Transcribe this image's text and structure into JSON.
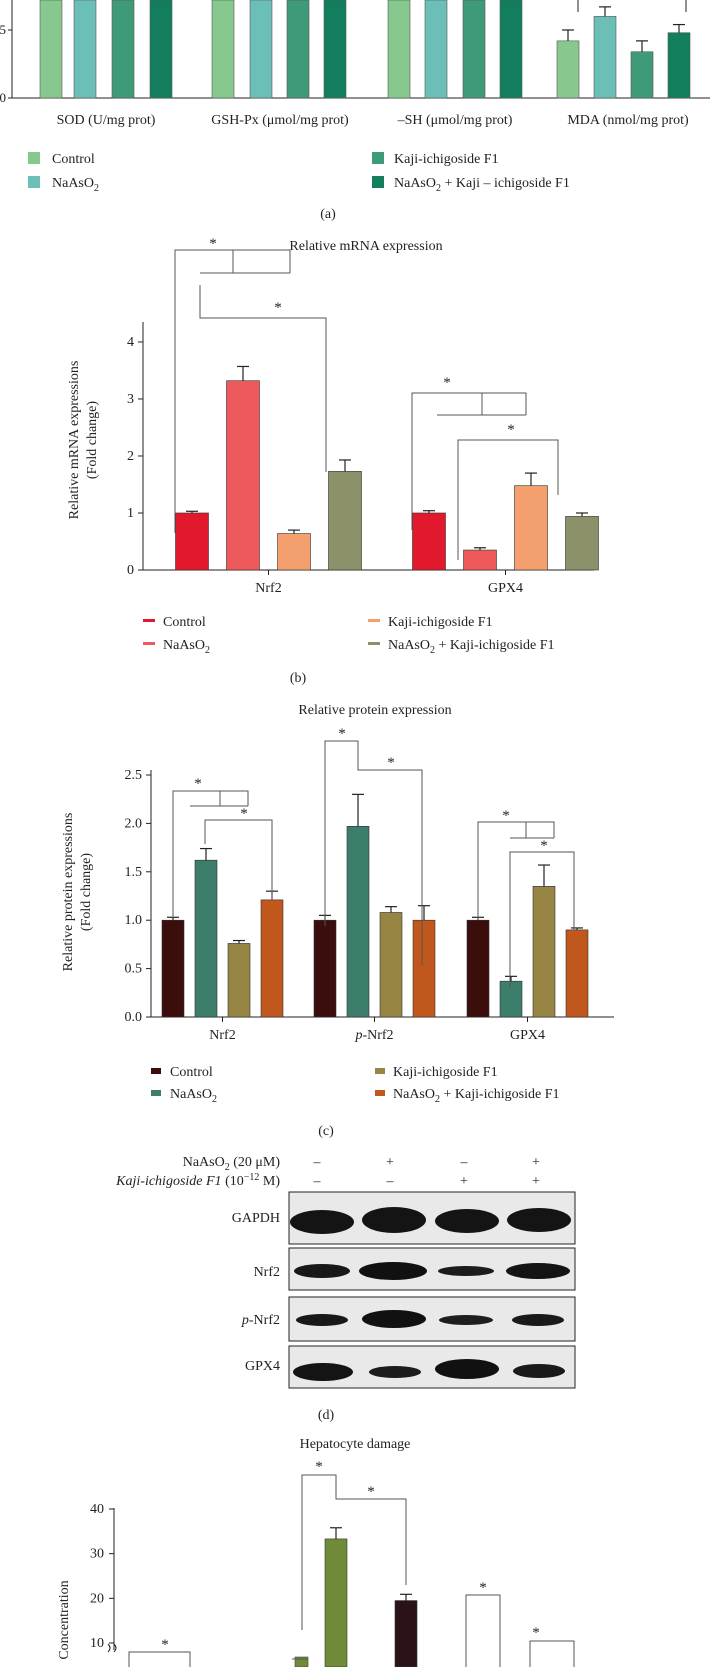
{
  "colors": {
    "green1": "#86c88d",
    "teal1": "#6cbfb6",
    "green2": "#3f9a78",
    "green3": "#137e5e",
    "red1": "#e2182c",
    "salmon": "#ee5a5b",
    "peach": "#f3a06e",
    "olive": "#8c916a",
    "maroon": "#3b0d0b",
    "seagreen": "#3c7d6c",
    "olive2": "#968543",
    "orange": "#c0571d",
    "olivegreen": "#6f8b37",
    "darkbrown": "#2a1216",
    "axis": "#222222",
    "sig": "#555555"
  },
  "panel_a": {
    "label": "(a)",
    "legend": [
      {
        "text": "Control",
        "sub": "",
        "rest": ""
      },
      {
        "text": "NaAsO",
        "sub": "2",
        "rest": ""
      },
      {
        "text": "Kaji-ichigoside F1",
        "sub": "",
        "rest": ""
      },
      {
        "text": "NaAsO",
        "sub": "2",
        "rest": " + Kaji – ichigoside F1"
      }
    ]
  },
  "panel_b": {
    "label": "(b)",
    "legend": [
      {
        "text": "Control",
        "sub": "",
        "rest": ""
      },
      {
        "text": "NaAsO",
        "sub": "2",
        "rest": ""
      },
      {
        "text": "Kaji-ichigoside F1",
        "sub": "",
        "rest": ""
      },
      {
        "text": "NaAsO",
        "sub": "2",
        "rest": " + Kaji-ichigoside F1"
      }
    ]
  },
  "panel_c": {
    "label": "(c)",
    "legend": [
      {
        "text": "Control",
        "sub": "",
        "rest": ""
      },
      {
        "text": "NaAsO",
        "sub": "2",
        "rest": ""
      },
      {
        "text": "Kaji-ichigoside F1",
        "sub": "",
        "rest": ""
      },
      {
        "text": "NaAsO",
        "sub": "2",
        "rest": " + Kaji-ichigoside F1"
      }
    ]
  },
  "panel_d": {
    "label": "(d)",
    "row1_label": "NaAsO",
    "row1_sub": "2",
    "row1_rest": " (20 μM)",
    "row2_italic": "Kaji-ichigoside F1",
    "row2_rest": " (10",
    "row2_sup": "−12",
    "row2_unit": " M)",
    "row1_signs": [
      "–",
      "+",
      "–",
      "+"
    ],
    "row2_signs": [
      "–",
      "–",
      "+",
      "+"
    ],
    "bands": [
      {
        "label": "GAPDH",
        "prefix": ""
      },
      {
        "label": "-Nrf2",
        "prefix": "",
        "plain": "Nrf2"
      },
      {
        "label": "-Nrf2",
        "prefix": "p"
      },
      {
        "label": "GPX4",
        "prefix": ""
      }
    ]
  },
  "panel_e": {
    "title": "Hepatocyte damage",
    "ylabel": "Concentration"
  },
  "chart_data": [
    {
      "id": "a",
      "type": "bar",
      "categories": [
        "SOD (U/mg prot)",
        "GSH-Px (μmol/mg prot)",
        "–SH (μmol/mg prot)",
        "MDA (nmol/mg prot)"
      ],
      "series": [
        {
          "name": "Control",
          "values": [
            null,
            null,
            null,
            4.2
          ],
          "errors": [
            null,
            null,
            null,
            0.8
          ]
        },
        {
          "name": "NaAsO2",
          "values": [
            null,
            null,
            null,
            6.0
          ],
          "errors": [
            null,
            null,
            null,
            0.7
          ]
        },
        {
          "name": "Kaji-ichigoside F1",
          "values": [
            null,
            null,
            null,
            3.4
          ],
          "errors": [
            null,
            null,
            null,
            0.8
          ]
        },
        {
          "name": "NaAsO2 + Kaji – ichigoside F1",
          "values": [
            null,
            null,
            null,
            4.8
          ],
          "errors": [
            null,
            null,
            null,
            0.6
          ]
        }
      ],
      "yticks": [
        0,
        5
      ],
      "ylim": [
        0,
        9
      ]
    },
    {
      "id": "b",
      "type": "bar",
      "title": "Relative mRNA expression",
      "ylabel": "Relative mRNA expressions",
      "ylabel2": "(Fold change)",
      "categories": [
        "Nrf2",
        "GPX4"
      ],
      "series": [
        {
          "name": "Control",
          "values": [
            1.0,
            1.0
          ],
          "errors": [
            0.03,
            0.04
          ]
        },
        {
          "name": "NaAsO2",
          "values": [
            3.32,
            0.35
          ],
          "errors": [
            0.25,
            0.04
          ]
        },
        {
          "name": "Kaji-ichigoside F1",
          "values": [
            0.64,
            1.48
          ],
          "errors": [
            0.06,
            0.22
          ]
        },
        {
          "name": "NaAsO2 + Kaji-ichigoside F1",
          "values": [
            1.73,
            0.94
          ],
          "errors": [
            0.2,
            0.06
          ]
        }
      ],
      "yticks": [
        0,
        1,
        2,
        3,
        4
      ],
      "ylim": [
        0,
        4.4
      ],
      "sig_label": "*"
    },
    {
      "id": "c",
      "type": "bar",
      "title": "Relative protein expression",
      "ylabel": "Relative protein expressions",
      "ylabel2": "(Fold change)",
      "categories": [
        "Nrf2",
        "p-Nrf2",
        "GPX4"
      ],
      "series": [
        {
          "name": "Control",
          "values": [
            1.0,
            1.0,
            1.0
          ],
          "errors": [
            0.03,
            0.05,
            0.03
          ]
        },
        {
          "name": "NaAsO2",
          "values": [
            1.62,
            1.97,
            0.37
          ],
          "errors": [
            0.12,
            0.33,
            0.05
          ]
        },
        {
          "name": "Kaji-ichigoside F1",
          "values": [
            0.76,
            1.08,
            1.35
          ],
          "errors": [
            0.03,
            0.06,
            0.22
          ]
        },
        {
          "name": "NaAsO2 + Kaji-ichigoside F1",
          "values": [
            1.21,
            1.0,
            0.9
          ],
          "errors": [
            0.09,
            0.15,
            0.02
          ]
        }
      ],
      "yticks": [
        "0.0",
        "0.5",
        "1.0",
        "1.5",
        "2.0",
        "2.5"
      ],
      "ylim": [
        0,
        2.6
      ],
      "sig_label": "*"
    },
    {
      "id": "e",
      "type": "bar",
      "title": "Hepatocyte damage",
      "ylabel": "Concentration",
      "series": [
        {
          "name": "NaAsO2",
          "values": [
            33.3
          ],
          "errors": [
            2.5
          ]
        },
        {
          "name": "NaAsO2 + Kaji-ichigoside F1",
          "values": [
            19.5
          ],
          "errors": [
            1.4
          ]
        }
      ],
      "yticks": [
        10,
        20,
        30,
        40
      ],
      "ylim": [
        10,
        40
      ],
      "axis_break": true,
      "sig_label": "*"
    }
  ]
}
